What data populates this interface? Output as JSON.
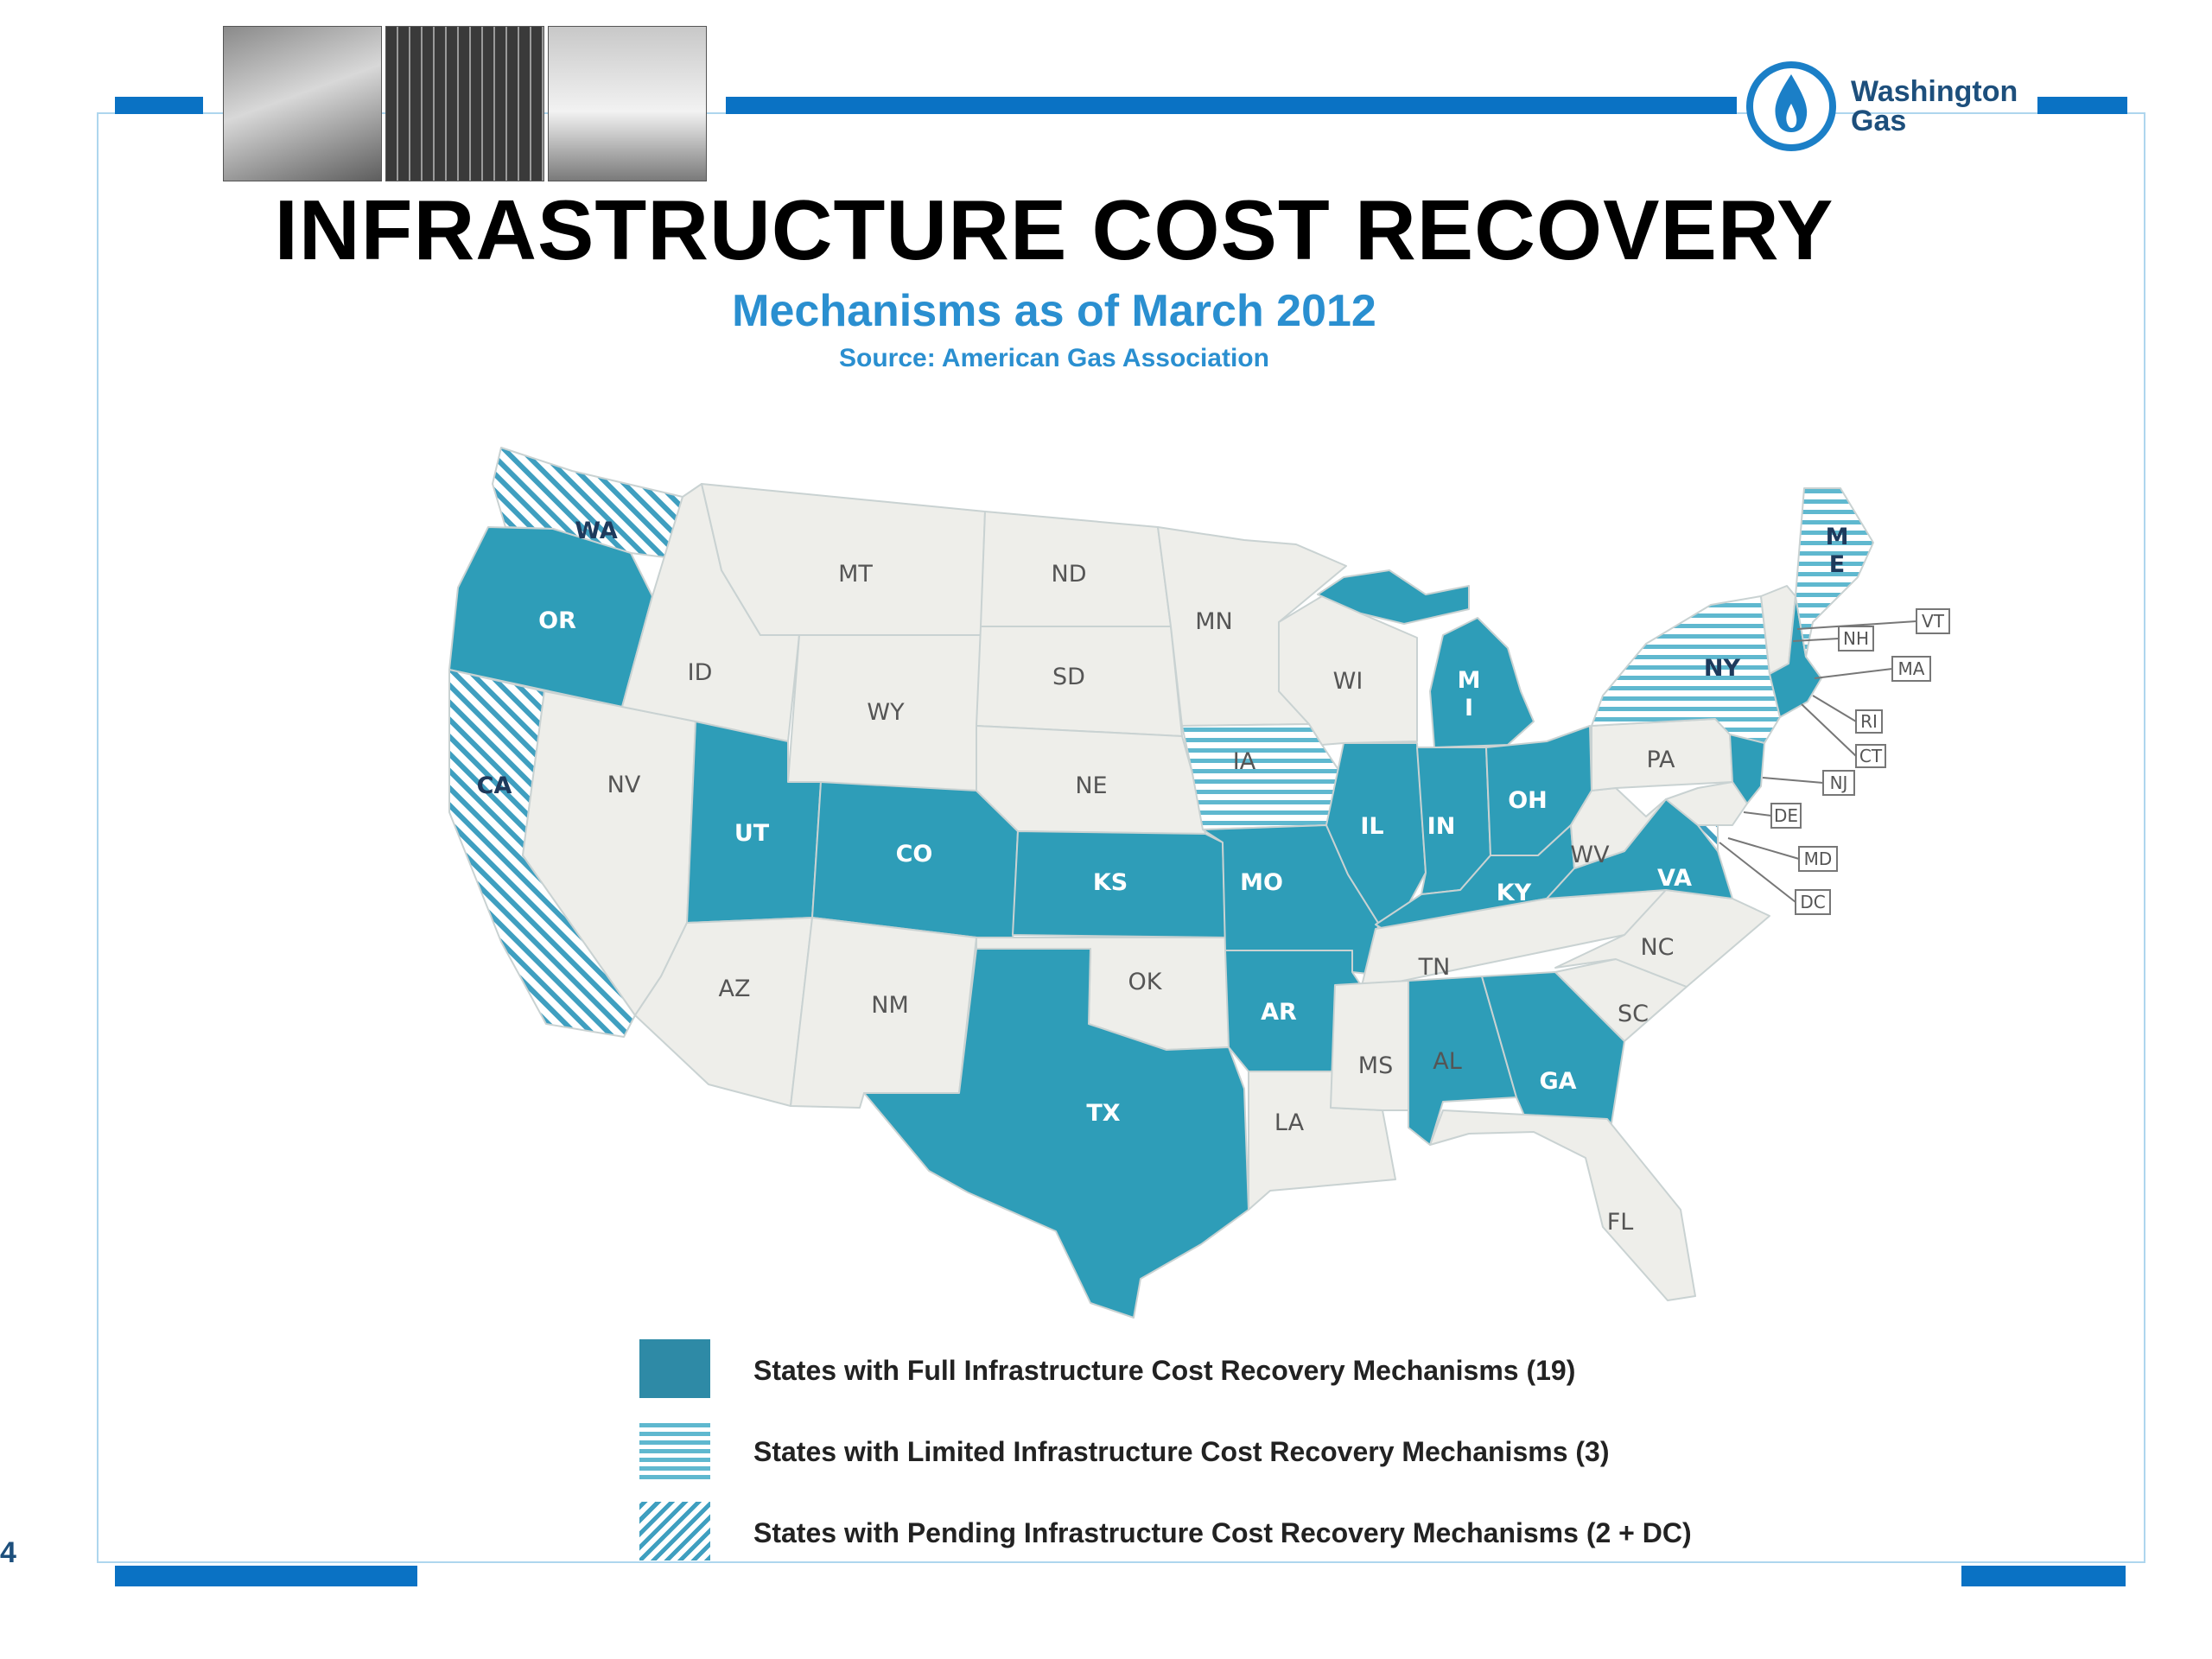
{
  "header": {
    "title": "INFRASTRUCTURE COST RECOVERY",
    "subtitle": "Mechanisms as of March 2012",
    "source": "Source: American Gas Association",
    "logo_line1": "Washington",
    "logo_line2": "Gas"
  },
  "colors": {
    "accent_bar": "#0a72c4",
    "full": "#2e9db8",
    "none": "#eeeeea",
    "state_border": "#c9d2d2",
    "text_blue": "#2a8fd0"
  },
  "map": {
    "categories": {
      "full": "States with Full Infrastructure Cost Recovery Mechanisms",
      "limited": "States with Limited Infrastructure Cost Recovery Mechanisms",
      "pending": "States with Pending Infrastructure Cost Recovery Mechanisms"
    },
    "state_labels": {
      "WA": "WA",
      "OR": "OR",
      "CA": "CA",
      "ID": "ID",
      "NV": "NV",
      "MT": "MT",
      "WY": "WY",
      "UT": "UT",
      "CO": "CO",
      "AZ": "AZ",
      "NM": "NM",
      "ND": "ND",
      "SD": "SD",
      "NE": "NE",
      "KS": "KS",
      "OK": "OK",
      "TX": "TX",
      "MN": "MN",
      "IA": "IA",
      "MO": "MO",
      "AR": "AR",
      "LA": "LA",
      "WI": "WI",
      "IL": "IL",
      "MI_1": "M",
      "MI_2": "I",
      "IN": "IN",
      "OH": "OH",
      "KY": "KY",
      "TN": "TN",
      "MS": "MS",
      "AL": "AL",
      "GA": "GA",
      "FL": "FL",
      "SC": "SC",
      "NC": "NC",
      "VA": "VA",
      "WV": "WV",
      "PA": "PA",
      "NY": "NY",
      "ME_1": "M",
      "ME_2": "E"
    },
    "callouts": {
      "VT": "VT",
      "NH": "NH",
      "MA": "MA",
      "RI": "RI",
      "CT": "CT",
      "NJ": "NJ",
      "DE": "DE",
      "MD": "MD",
      "DC": "DC"
    }
  },
  "legend": [
    {
      "label": "States with Full Infrastructure Cost Recovery Mechanisms  (19)",
      "pattern": "full"
    },
    {
      "label": "States with Limited Infrastructure Cost Recovery Mechanisms  (3)",
      "pattern": "limited"
    },
    {
      "label": "States with Pending Infrastructure Cost Recovery Mechanisms  (2 + DC)",
      "pattern": "pending"
    }
  ],
  "page_number": "4"
}
